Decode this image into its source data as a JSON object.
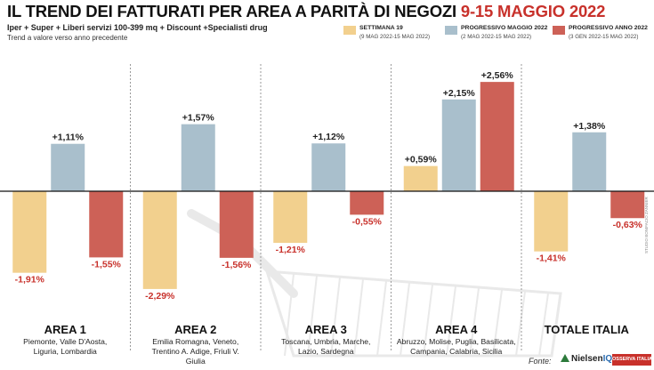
{
  "header": {
    "title_main": "IL TREND DEI FATTURATI PER AREA A PARITÀ DI NEGOZI",
    "title_date": "9-15 MAGGIO 2022",
    "subtitle": "Iper + Super + Liberi servizi 100-399 mq + Discount +Specialisti drug",
    "note": "Trend a valore verso anno precedente"
  },
  "legend": [
    {
      "name": "SETTIMANA 19",
      "range": "(9 MAG 2022-15 MAG 2022)",
      "color": "#f2d08e"
    },
    {
      "name": "PROGRESSIVO MAGGIO 2022",
      "range": "(2 MAG 2022-15 MAG 2022)",
      "color": "#a9bfcc"
    },
    {
      "name": "PROGRESSIVO ANNO 2022",
      "range": "(3 GEN 2022-15 MAG 2022)",
      "color": "#cd6157"
    }
  ],
  "chart_data": {
    "type": "bar",
    "categories": [
      "AREA 1",
      "AREA 2",
      "AREA 3",
      "AREA 4",
      "TOTALE ITALIA"
    ],
    "category_details": [
      "Piemonte, Valle D'Aosta, Liguria, Lombardia",
      "Emilia Romagna, Veneto, Trentino A. Adige, Friuli V. Giulia",
      "Toscana, Umbria, Marche, Lazio, Sardegna",
      "Abruzzo, Molise, Puglia, Basilicata, Campania, Calabria, Sicilia",
      ""
    ],
    "series": [
      {
        "name": "SETTIMANA 19",
        "values": [
          -1.91,
          -2.29,
          -1.21,
          0.59,
          -1.41
        ]
      },
      {
        "name": "PROGRESSIVO MAGGIO 2022",
        "values": [
          1.11,
          1.57,
          1.12,
          2.15,
          1.38
        ]
      },
      {
        "name": "PROGRESSIVO ANNO 2022",
        "values": [
          -1.55,
          -1.56,
          -0.55,
          2.56,
          -0.63
        ]
      }
    ],
    "labels": [
      [
        "-1,91%",
        "+1,11%",
        "-1,55%"
      ],
      [
        "-2,29%",
        "+1,57%",
        "-1,56%"
      ],
      [
        "-1,21%",
        "+1,12%",
        "-0,55%"
      ],
      [
        "+0,59%",
        "+2,15%",
        "+2,56%"
      ],
      [
        "-1,41%",
        "+1,38%",
        "-0,63%"
      ]
    ],
    "unit": "%",
    "ylim": [
      -2.6,
      2.7
    ],
    "colors": {
      "negative_label": "#c8312b",
      "positive_label": "#222222"
    },
    "grid": false,
    "legend_position": "top-right"
  },
  "footer": {
    "source_label": "Fonte:",
    "nielsen": "Nielsen",
    "nielsen_iq": "IQ",
    "osserva": "OSSERVA ITALIA",
    "credit": "STUDIO BONIFACIO ZANNIER"
  }
}
